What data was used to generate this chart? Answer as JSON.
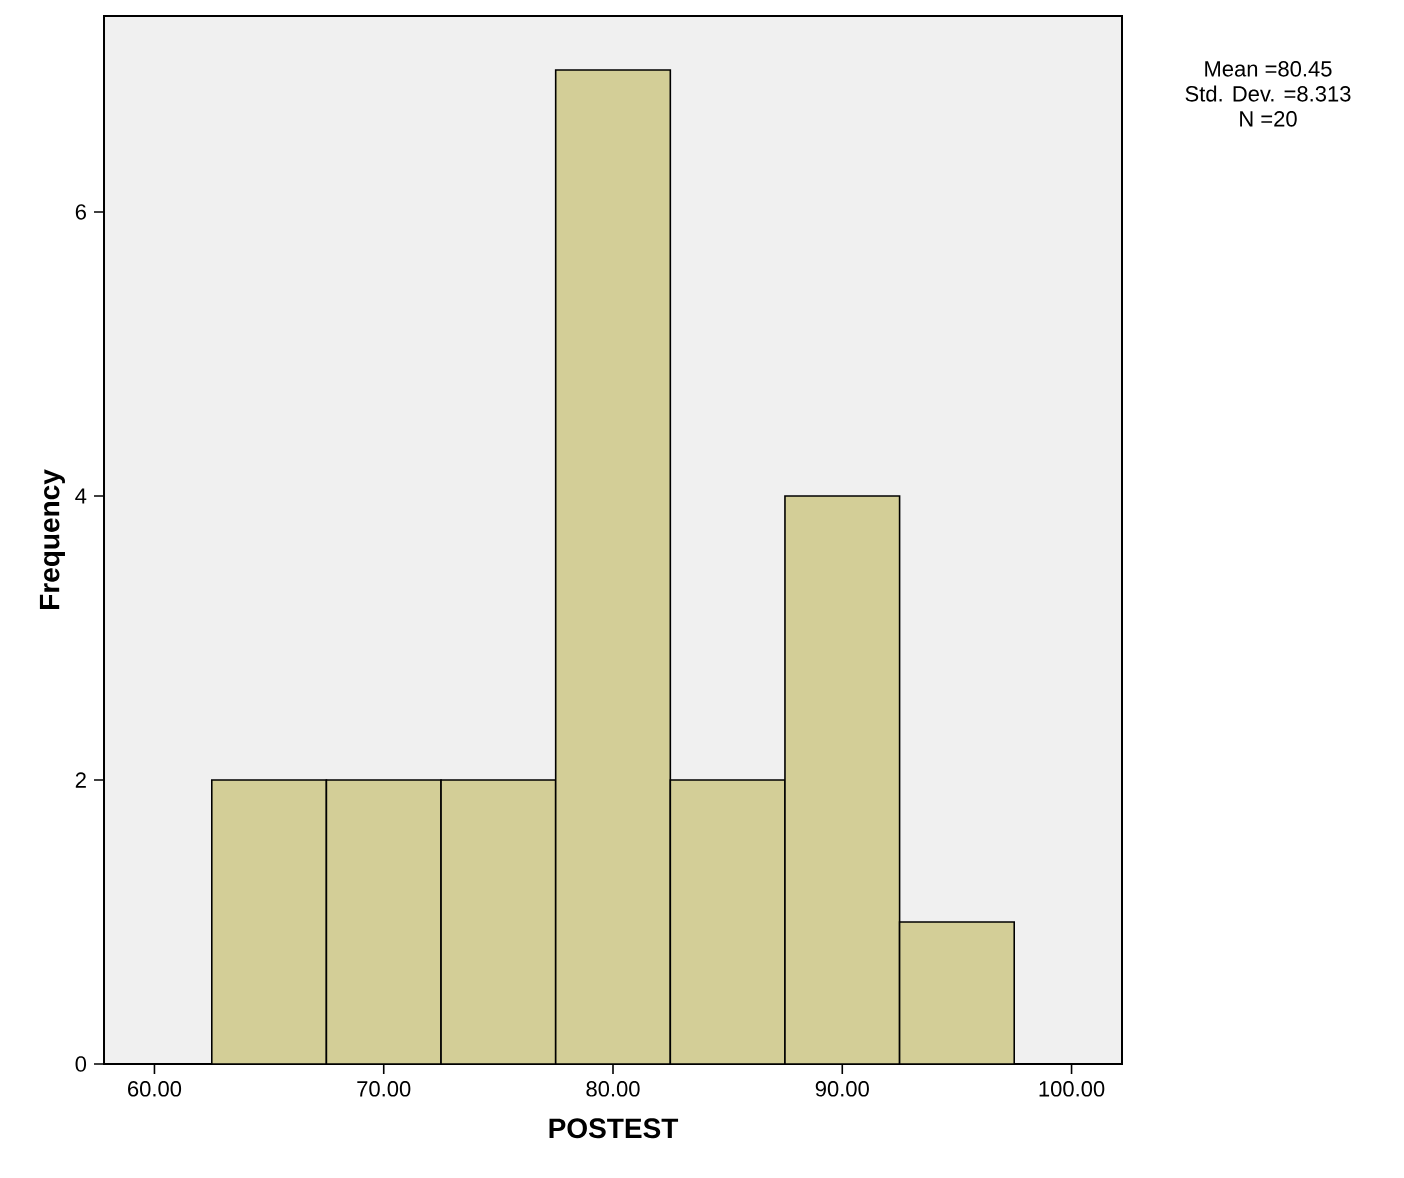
{
  "chart_data": {
    "type": "histogram",
    "xlabel": "POSTEST",
    "ylabel": "Frequency",
    "bins": [
      62.5,
      67.5,
      72.5,
      77.5,
      82.5,
      87.5,
      92.5,
      97.5
    ],
    "values": [
      2,
      2,
      2,
      7,
      2,
      4,
      1
    ],
    "color": "#d3ce97",
    "xlim": [
      57.8,
      102.2
    ],
    "xticks": [
      {
        "value": 60,
        "label": "60.00"
      },
      {
        "value": 70,
        "label": "70.00"
      },
      {
        "value": 80,
        "label": "80.00"
      },
      {
        "value": 90,
        "label": "90.00"
      },
      {
        "value": 100,
        "label": "100.00"
      }
    ],
    "ylim": [
      0,
      7.38
    ],
    "yticks": [
      0,
      2,
      4,
      6
    ],
    "annotations": [
      "Mean =80.45",
      "Std. Dev. =8.313",
      "N =20"
    ]
  }
}
